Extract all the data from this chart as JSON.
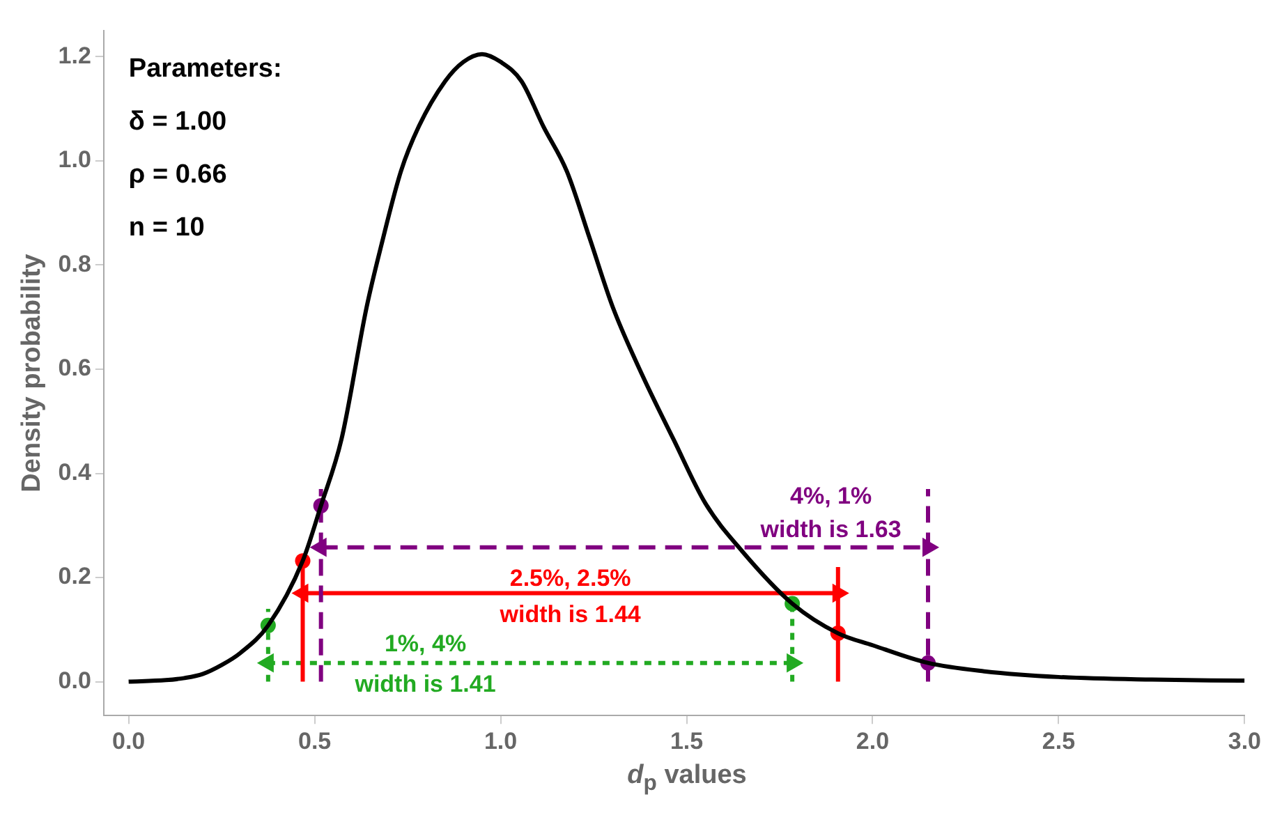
{
  "chart_data": {
    "type": "line",
    "xlabel": "d$_{p}$ values",
    "ylabel": "Density probability",
    "xlim": [
      -0.067,
      3.0
    ],
    "ylim": [
      -0.065,
      1.25
    ],
    "xticks": [
      {
        "value": 0,
        "label": "0.0"
      },
      0.5,
      {
        "value": 1,
        "label": "1.0"
      },
      1.5,
      {
        "value": 2,
        "label": "2.0"
      },
      2.5,
      {
        "value": 3,
        "label": "3.0"
      }
    ],
    "yticks": [
      {
        "value": 0,
        "label": "0.0"
      },
      0.2,
      0.4,
      0.6,
      0.8,
      {
        "value": 1,
        "label": "1.0"
      },
      1.2
    ],
    "grid": false,
    "legend": false,
    "series": [
      {
        "color": "#000000",
        "marker": "none",
        "line_style": "solid",
        "x": [
          0,
          0.1,
          0.15,
          0.2,
          0.25,
          0.3,
          0.375,
          0.468,
          0.517,
          0.572,
          0.64,
          0.68,
          0.732,
          0.78,
          0.851,
          0.9,
          0.95,
          1.0,
          1.056,
          1.115,
          1.178,
          1.24,
          1.301,
          1.38,
          1.465,
          1.55,
          1.65,
          1.784,
          1.907,
          2.0,
          2.149,
          2.3,
          2.5,
          2.75,
          3.0
        ],
        "values": [
          0,
          0.003,
          0.007,
          0.015,
          0.032,
          0.055,
          0.108,
          0.232,
          0.338,
          0.465,
          0.72,
          0.84,
          0.98,
          1.066,
          1.153,
          1.19,
          1.205,
          1.19,
          1.153,
          1.066,
          0.98,
          0.85,
          0.72,
          0.59,
          0.465,
          0.343,
          0.25,
          0.15,
          0.093,
          0.07,
          0.036,
          0.02,
          0.009,
          0.004,
          0.002
        ]
      },
      {
        "type": "line",
        "color": "#22aa22",
        "marker": "none",
        "line_style": "dotted",
        "x": [
          0.375,
          0.375
        ],
        "values": [
          0,
          0.14
        ]
      },
      {
        "type": "line",
        "color": "#22aa22",
        "marker": "none",
        "line_style": "dotted",
        "x": [
          1.784,
          1.784
        ],
        "values": [
          0,
          0.14
        ]
      },
      {
        "type": "line",
        "color": "#ff0000",
        "marker": "none",
        "line_style": "solid",
        "x": [
          0.468,
          0.468
        ],
        "values": [
          0,
          0.23
        ]
      },
      {
        "type": "line",
        "color": "#ff0000",
        "marker": "none",
        "line_style": "solid",
        "x": [
          1.907,
          1.907
        ],
        "values": [
          0,
          0.22
        ]
      },
      {
        "type": "line",
        "color": "#800080",
        "marker": "none",
        "line_style": "dashed",
        "x": [
          0.517,
          0.517
        ],
        "values": [
          0,
          0.37
        ]
      },
      {
        "type": "line",
        "color": "#800080",
        "marker": "none",
        "line_style": "dashed",
        "x": [
          2.149,
          2.149
        ],
        "values": [
          0,
          0.37
        ]
      },
      {
        "type": "line",
        "color": "#22aa22",
        "marker": "triangle",
        "line_style": "dotted",
        "x": [
          0.375,
          1.784
        ],
        "values": [
          0.036,
          0.036
        ]
      },
      {
        "type": "line",
        "color": "#ff0000",
        "marker": "triangle",
        "line_style": "solid",
        "x": [
          0.468,
          1.907
        ],
        "values": [
          0.17,
          0.17
        ]
      },
      {
        "type": "line",
        "color": "#800080",
        "marker": "triangle",
        "line_style": "dashed",
        "x": [
          0.517,
          2.149
        ],
        "values": [
          0.258,
          0.258
        ]
      },
      {
        "type": "scatter",
        "color": "#22aa22",
        "marker": "circle",
        "x": [
          0.375,
          1.784
        ],
        "values": [
          0.108,
          0.15
        ]
      },
      {
        "type": "scatter",
        "color": "#ff0000",
        "marker": "circle",
        "x": [
          0.468,
          1.907
        ],
        "values": [
          0.232,
          0.093
        ]
      },
      {
        "type": "scatter",
        "color": "#800080",
        "marker": "circle",
        "x": [
          0.517,
          2.149
        ],
        "values": [
          0.338,
          0.036
        ]
      }
    ],
    "annotations": [
      "Parameters:",
      "δ = 1.00",
      "ρ = 0.66",
      "n = 10",
      "1%, 4%",
      "width is 1.41",
      "2.5%, 2.5%",
      "width is 1.44",
      "4%, 1%",
      "width is 1.63"
    ]
  }
}
